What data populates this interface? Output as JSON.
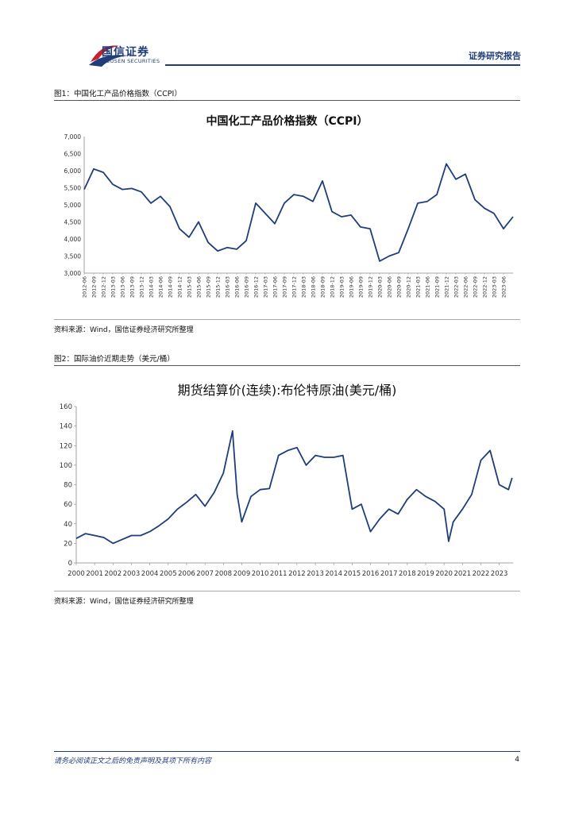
{
  "header": {
    "brand_cn": "国信证券",
    "brand_en": "GUOSEN SECURITIES",
    "report_type": "证券研究报告",
    "brand_color": "#1f3d7a",
    "logo_accent": "#c8202f"
  },
  "figures": [
    {
      "caption": "图1：中国化工产品价格指数（CCPI）",
      "source": "资料来源：Wind，国信证券经济研究所整理"
    },
    {
      "caption": "图2：国际油价近期走势（美元/桶）",
      "source": "资料来源：Wind，国信证券经济研究所整理"
    }
  ],
  "footer": {
    "note": "请务必阅读正文之后的免责声明及其项下所有内容",
    "page": "4"
  },
  "chart_data": [
    {
      "type": "line",
      "title": "中国化工产品价格指数（CCPI）",
      "line_color": "#1f3d7a",
      "ylim": [
        3000,
        7000
      ],
      "ytick_labels": [
        "7,000",
        "6,500",
        "6,000",
        "5,500",
        "5,000",
        "4,500",
        "4,000",
        "3,500",
        "3,000"
      ],
      "ytick_values": [
        7000,
        6500,
        6000,
        5500,
        5000,
        4500,
        4000,
        3500,
        3000
      ],
      "xtick_labels": [
        "2012-06",
        "2012-09",
        "2012-12",
        "2013-03",
        "2013-06",
        "2013-09",
        "2013-12",
        "2014-03",
        "2014-06",
        "2014-09",
        "2014-12",
        "2015-03",
        "2015-06",
        "2015-09",
        "2015-12",
        "2016-03",
        "2016-06",
        "2016-09",
        "2016-12",
        "2017-03",
        "2017-06",
        "2017-09",
        "2017-12",
        "2018-03",
        "2018-06",
        "2018-09",
        "2018-12",
        "2019-03",
        "2019-06",
        "2019-09",
        "2019-12",
        "2020-03",
        "2020-06",
        "2020-09",
        "2020-12",
        "2021-03",
        "2021-06",
        "2021-09",
        "2021-12",
        "2022-03",
        "2022-06",
        "2022-09",
        "2022-12",
        "2023-03",
        "2023-06"
      ],
      "x_range": [
        "2012-06",
        "2023-09"
      ],
      "x": [
        "2012-06",
        "2012-09",
        "2012-12",
        "2013-03",
        "2013-06",
        "2013-09",
        "2013-12",
        "2014-03",
        "2014-06",
        "2014-09",
        "2014-12",
        "2015-03",
        "2015-06",
        "2015-09",
        "2015-12",
        "2016-03",
        "2016-06",
        "2016-09",
        "2016-12",
        "2017-03",
        "2017-06",
        "2017-09",
        "2017-12",
        "2018-03",
        "2018-06",
        "2018-09",
        "2018-12",
        "2019-03",
        "2019-06",
        "2019-09",
        "2019-12",
        "2020-03",
        "2020-06",
        "2020-09",
        "2020-12",
        "2021-03",
        "2021-06",
        "2021-09",
        "2021-12",
        "2022-03",
        "2022-06",
        "2022-09",
        "2022-12",
        "2023-03",
        "2023-06",
        "2023-09"
      ],
      "series": [
        {
          "values": [
            5450,
            6050,
            5950,
            5600,
            5450,
            5480,
            5380,
            5050,
            5250,
            4950,
            4300,
            4050,
            4500,
            3900,
            3650,
            3750,
            3700,
            3950,
            5050,
            4750,
            4450,
            5050,
            5300,
            5250,
            5100,
            5700,
            4800,
            4650,
            4700,
            4350,
            4300,
            3350,
            3500,
            3600,
            4300,
            5050,
            5100,
            5300,
            6200,
            5750,
            5900,
            5150,
            4900,
            4750,
            4300,
            4650
          ]
        }
      ]
    },
    {
      "type": "line",
      "title": "期货结算价(连续):布伦特原油(美元/桶)",
      "line_color": "#1f3d7a",
      "ylim": [
        0,
        160
      ],
      "ytick_values": [
        0,
        20,
        40,
        60,
        80,
        100,
        120,
        140,
        160
      ],
      "ytick_labels": [
        "0",
        "20",
        "40",
        "60",
        "80",
        "100",
        "120",
        "140",
        "160"
      ],
      "xtick_labels": [
        "2000",
        "2001",
        "2002",
        "2003",
        "2004",
        "2005",
        "2006",
        "2007",
        "2008",
        "2009",
        "2010",
        "2011",
        "2012",
        "2013",
        "2014",
        "2015",
        "2016",
        "2017",
        "2018",
        "2019",
        "2020",
        "2021",
        "2022",
        "2023"
      ],
      "x_range": [
        2000,
        2023.75
      ],
      "x": [
        2000,
        2000.5,
        2001,
        2001.5,
        2002,
        2002.5,
        2003,
        2003.5,
        2004,
        2004.5,
        2005,
        2005.5,
        2006,
        2006.5,
        2007,
        2007.5,
        2008,
        2008.5,
        2008.75,
        2009,
        2009.5,
        2010,
        2010.5,
        2011,
        2011.5,
        2012,
        2012.5,
        2013,
        2013.5,
        2014,
        2014.5,
        2015,
        2015.5,
        2016,
        2016.5,
        2017,
        2017.5,
        2018,
        2018.5,
        2019,
        2019.5,
        2020,
        2020.25,
        2020.5,
        2021,
        2021.5,
        2022,
        2022.5,
        2023,
        2023.5,
        2023.7
      ],
      "series": [
        {
          "values": [
            25,
            30,
            28,
            26,
            20,
            24,
            28,
            28,
            32,
            38,
            45,
            55,
            62,
            70,
            58,
            72,
            92,
            135,
            70,
            42,
            68,
            75,
            76,
            110,
            115,
            118,
            100,
            110,
            108,
            108,
            110,
            55,
            60,
            32,
            45,
            55,
            50,
            65,
            75,
            68,
            63,
            55,
            22,
            42,
            55,
            70,
            105,
            115,
            80,
            75,
            87
          ]
        }
      ]
    }
  ]
}
